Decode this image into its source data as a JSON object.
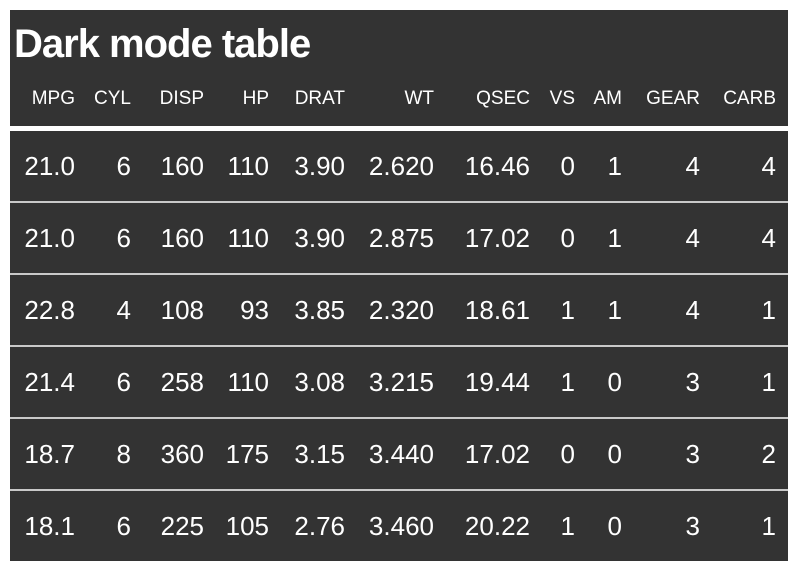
{
  "theme": {
    "page_background": "#ffffff",
    "table_background": "#333333",
    "text_color": "#ffffff",
    "header_rule_color": "#ffffff",
    "row_rule_color": "#c9c9c9"
  },
  "chart_data": {
    "type": "table",
    "title": "Dark mode table",
    "columns": [
      "MPG",
      "CYL",
      "DISP",
      "HP",
      "DRAT",
      "WT",
      "QSEC",
      "VS",
      "AM",
      "GEAR",
      "CARB"
    ],
    "rows": [
      [
        "21.0",
        "6",
        "160",
        "110",
        "3.90",
        "2.620",
        "16.46",
        "0",
        "1",
        "4",
        "4"
      ],
      [
        "21.0",
        "6",
        "160",
        "110",
        "3.90",
        "2.875",
        "17.02",
        "0",
        "1",
        "4",
        "4"
      ],
      [
        "22.8",
        "4",
        "108",
        "93",
        "3.85",
        "2.320",
        "18.61",
        "1",
        "1",
        "4",
        "1"
      ],
      [
        "21.4",
        "6",
        "258",
        "110",
        "3.08",
        "3.215",
        "19.44",
        "1",
        "0",
        "3",
        "1"
      ],
      [
        "18.7",
        "8",
        "360",
        "175",
        "3.15",
        "3.440",
        "17.02",
        "0",
        "0",
        "3",
        "2"
      ],
      [
        "18.1",
        "6",
        "225",
        "105",
        "2.76",
        "3.460",
        "20.22",
        "1",
        "0",
        "3",
        "1"
      ]
    ],
    "layout": {
      "alignment": "right",
      "grid": "horizontal-rules-only",
      "legend": "none"
    }
  }
}
